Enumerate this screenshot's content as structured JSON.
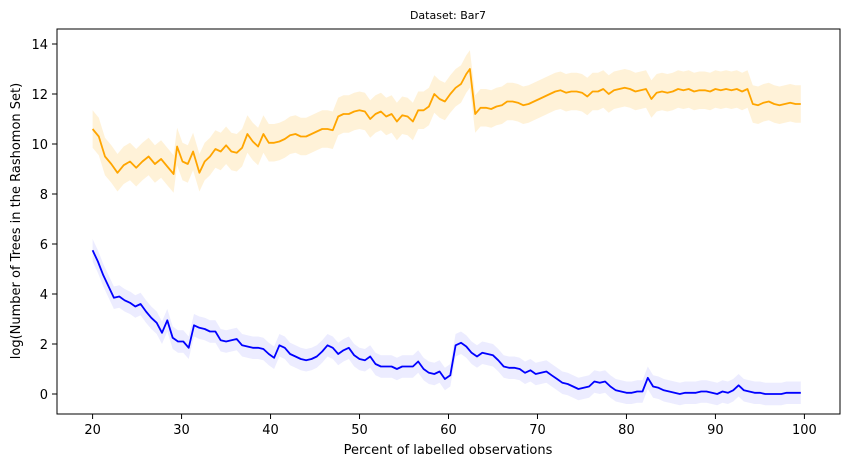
{
  "chart_data": {
    "type": "line",
    "title": "Dataset: Bar7",
    "xlabel": "Percent of labelled observations",
    "ylabel": "log(Number of Trees in the Rashomon Set)",
    "xlim": [
      16,
      104
    ],
    "ylim": [
      -0.8,
      14.6
    ],
    "xticks": [
      20,
      30,
      40,
      50,
      60,
      70,
      80,
      90,
      100
    ],
    "yticks": [
      0,
      2,
      4,
      6,
      8,
      10,
      12,
      14
    ],
    "grid": false,
    "legend": "none",
    "series": [
      {
        "color": "#ffa500",
        "band_color": "#ffe8b8",
        "band_halfwidth": 0.75,
        "points": [
          [
            20,
            10.6
          ],
          [
            20.7,
            10.3
          ],
          [
            21.4,
            9.5
          ],
          [
            22.1,
            9.2
          ],
          [
            22.8,
            8.85
          ],
          [
            23.5,
            9.15
          ],
          [
            24.2,
            9.3
          ],
          [
            24.9,
            9.05
          ],
          [
            25.6,
            9.3
          ],
          [
            26.3,
            9.5
          ],
          [
            27,
            9.2
          ],
          [
            27.7,
            9.4
          ],
          [
            28.4,
            9.1
          ],
          [
            29.1,
            8.8
          ],
          [
            29.5,
            9.9
          ],
          [
            30.1,
            9.3
          ],
          [
            30.7,
            9.2
          ],
          [
            31.3,
            9.7
          ],
          [
            32,
            8.85
          ],
          [
            32.6,
            9.3
          ],
          [
            33.2,
            9.5
          ],
          [
            33.8,
            9.8
          ],
          [
            34.4,
            9.7
          ],
          [
            35,
            9.95
          ],
          [
            35.6,
            9.7
          ],
          [
            36.2,
            9.65
          ],
          [
            36.8,
            9.85
          ],
          [
            37.4,
            10.4
          ],
          [
            38,
            10.1
          ],
          [
            38.6,
            9.9
          ],
          [
            39.2,
            10.4
          ],
          [
            39.8,
            10.05
          ],
          [
            40.4,
            10.05
          ],
          [
            41,
            10.1
          ],
          [
            41.6,
            10.2
          ],
          [
            42.2,
            10.35
          ],
          [
            42.8,
            10.4
          ],
          [
            43.4,
            10.3
          ],
          [
            44,
            10.3
          ],
          [
            44.6,
            10.4
          ],
          [
            45.2,
            10.5
          ],
          [
            45.8,
            10.6
          ],
          [
            46.4,
            10.6
          ],
          [
            47,
            10.55
          ],
          [
            47.6,
            11.1
          ],
          [
            48.2,
            11.2
          ],
          [
            48.8,
            11.2
          ],
          [
            49.4,
            11.3
          ],
          [
            50,
            11.35
          ],
          [
            50.6,
            11.3
          ],
          [
            51.2,
            11.0
          ],
          [
            51.8,
            11.2
          ],
          [
            52.4,
            11.3
          ],
          [
            53,
            11.1
          ],
          [
            53.6,
            11.2
          ],
          [
            54.2,
            10.9
          ],
          [
            54.8,
            11.15
          ],
          [
            55.4,
            11.1
          ],
          [
            56,
            10.9
          ],
          [
            56.6,
            11.35
          ],
          [
            57.2,
            11.35
          ],
          [
            57.8,
            11.5
          ],
          [
            58.4,
            12.0
          ],
          [
            59,
            11.8
          ],
          [
            59.6,
            11.7
          ],
          [
            60.2,
            12.0
          ],
          [
            60.8,
            12.25
          ],
          [
            61.4,
            12.4
          ],
          [
            62,
            12.8
          ],
          [
            62.4,
            13.0
          ],
          [
            63,
            11.2
          ],
          [
            63.6,
            11.45
          ],
          [
            64.2,
            11.45
          ],
          [
            64.8,
            11.4
          ],
          [
            65.4,
            11.5
          ],
          [
            66,
            11.55
          ],
          [
            66.6,
            11.7
          ],
          [
            67.2,
            11.7
          ],
          [
            67.8,
            11.65
          ],
          [
            68.4,
            11.55
          ],
          [
            69,
            11.6
          ],
          [
            69.6,
            11.7
          ],
          [
            70.2,
            11.8
          ],
          [
            70.8,
            11.9
          ],
          [
            71.4,
            12.0
          ],
          [
            72,
            12.1
          ],
          [
            72.6,
            12.15
          ],
          [
            73.2,
            12.05
          ],
          [
            73.8,
            12.1
          ],
          [
            74.4,
            12.1
          ],
          [
            75,
            12.05
          ],
          [
            75.6,
            11.9
          ],
          [
            76.2,
            12.1
          ],
          [
            76.8,
            12.1
          ],
          [
            77.4,
            12.2
          ],
          [
            78,
            12.0
          ],
          [
            78.6,
            12.15
          ],
          [
            79.2,
            12.2
          ],
          [
            79.8,
            12.25
          ],
          [
            80.4,
            12.2
          ],
          [
            81,
            12.1
          ],
          [
            81.6,
            12.15
          ],
          [
            82.2,
            12.2
          ],
          [
            82.8,
            11.8
          ],
          [
            83.4,
            12.05
          ],
          [
            84,
            12.1
          ],
          [
            84.6,
            12.05
          ],
          [
            85.2,
            12.1
          ],
          [
            85.8,
            12.2
          ],
          [
            86.4,
            12.15
          ],
          [
            87,
            12.2
          ],
          [
            87.6,
            12.1
          ],
          [
            88.2,
            12.15
          ],
          [
            88.8,
            12.15
          ],
          [
            89.4,
            12.1
          ],
          [
            90,
            12.2
          ],
          [
            90.6,
            12.15
          ],
          [
            91.2,
            12.2
          ],
          [
            91.8,
            12.15
          ],
          [
            92.4,
            12.2
          ],
          [
            93,
            12.1
          ],
          [
            93.6,
            12.2
          ],
          [
            94.2,
            11.6
          ],
          [
            94.8,
            11.55
          ],
          [
            95.4,
            11.65
          ],
          [
            96,
            11.7
          ],
          [
            96.6,
            11.6
          ],
          [
            97.2,
            11.55
          ],
          [
            97.8,
            11.6
          ],
          [
            98.4,
            11.65
          ],
          [
            99,
            11.6
          ],
          [
            99.6,
            11.6
          ]
        ]
      },
      {
        "color": "#0000ff",
        "band_color": "#dcdcff",
        "band_halfwidth": 0.45,
        "points": [
          [
            20,
            5.75
          ],
          [
            20.6,
            5.3
          ],
          [
            21.2,
            4.75
          ],
          [
            21.8,
            4.3
          ],
          [
            22.4,
            3.85
          ],
          [
            23,
            3.9
          ],
          [
            23.6,
            3.75
          ],
          [
            24.2,
            3.65
          ],
          [
            24.8,
            3.5
          ],
          [
            25.4,
            3.6
          ],
          [
            26,
            3.3
          ],
          [
            26.6,
            3.05
          ],
          [
            27.2,
            2.85
          ],
          [
            27.8,
            2.45
          ],
          [
            28.4,
            2.95
          ],
          [
            29,
            2.25
          ],
          [
            29.6,
            2.1
          ],
          [
            30.2,
            2.1
          ],
          [
            30.8,
            1.85
          ],
          [
            31.4,
            2.75
          ],
          [
            32,
            2.65
          ],
          [
            32.6,
            2.6
          ],
          [
            33.2,
            2.5
          ],
          [
            33.8,
            2.5
          ],
          [
            34.4,
            2.15
          ],
          [
            35,
            2.1
          ],
          [
            35.6,
            2.15
          ],
          [
            36.2,
            2.2
          ],
          [
            36.8,
            1.95
          ],
          [
            37.4,
            1.9
          ],
          [
            38,
            1.85
          ],
          [
            38.6,
            1.85
          ],
          [
            39.2,
            1.8
          ],
          [
            39.8,
            1.6
          ],
          [
            40.4,
            1.45
          ],
          [
            41,
            1.95
          ],
          [
            41.6,
            1.85
          ],
          [
            42.2,
            1.6
          ],
          [
            42.8,
            1.5
          ],
          [
            43.4,
            1.4
          ],
          [
            44,
            1.35
          ],
          [
            44.6,
            1.4
          ],
          [
            45.2,
            1.5
          ],
          [
            45.8,
            1.7
          ],
          [
            46.4,
            1.95
          ],
          [
            47,
            1.85
          ],
          [
            47.6,
            1.6
          ],
          [
            48.2,
            1.75
          ],
          [
            48.8,
            1.85
          ],
          [
            49.4,
            1.55
          ],
          [
            50,
            1.4
          ],
          [
            50.6,
            1.35
          ],
          [
            51.2,
            1.5
          ],
          [
            51.8,
            1.2
          ],
          [
            52.4,
            1.1
          ],
          [
            53,
            1.1
          ],
          [
            53.6,
            1.1
          ],
          [
            54.2,
            1.0
          ],
          [
            54.8,
            1.1
          ],
          [
            55.4,
            1.1
          ],
          [
            56,
            1.1
          ],
          [
            56.6,
            1.3
          ],
          [
            57.2,
            1.0
          ],
          [
            57.8,
            0.85
          ],
          [
            58.4,
            0.8
          ],
          [
            59,
            0.9
          ],
          [
            59.6,
            0.6
          ],
          [
            60.2,
            0.75
          ],
          [
            60.8,
            1.95
          ],
          [
            61.4,
            2.05
          ],
          [
            62,
            1.9
          ],
          [
            62.6,
            1.65
          ],
          [
            63.2,
            1.5
          ],
          [
            63.8,
            1.65
          ],
          [
            64.4,
            1.6
          ],
          [
            65,
            1.55
          ],
          [
            65.6,
            1.35
          ],
          [
            66.2,
            1.1
          ],
          [
            66.8,
            1.05
          ],
          [
            67.4,
            1.05
          ],
          [
            68,
            1.0
          ],
          [
            68.6,
            0.85
          ],
          [
            69.2,
            0.95
          ],
          [
            69.8,
            0.8
          ],
          [
            70.4,
            0.85
          ],
          [
            71,
            0.9
          ],
          [
            71.6,
            0.75
          ],
          [
            72.2,
            0.6
          ],
          [
            72.8,
            0.45
          ],
          [
            73.4,
            0.4
          ],
          [
            74,
            0.3
          ],
          [
            74.6,
            0.2
          ],
          [
            75.2,
            0.25
          ],
          [
            75.8,
            0.3
          ],
          [
            76.4,
            0.5
          ],
          [
            77,
            0.45
          ],
          [
            77.6,
            0.5
          ],
          [
            78.2,
            0.3
          ],
          [
            78.8,
            0.15
          ],
          [
            79.4,
            0.1
          ],
          [
            80,
            0.05
          ],
          [
            80.6,
            0.05
          ],
          [
            81.2,
            0.1
          ],
          [
            81.8,
            0.1
          ],
          [
            82.4,
            0.65
          ],
          [
            83,
            0.3
          ],
          [
            83.6,
            0.25
          ],
          [
            84.2,
            0.15
          ],
          [
            84.8,
            0.1
          ],
          [
            85.4,
            0.05
          ],
          [
            86,
            0.0
          ],
          [
            86.6,
            0.05
          ],
          [
            87.2,
            0.05
          ],
          [
            87.8,
            0.05
          ],
          [
            88.4,
            0.1
          ],
          [
            89,
            0.1
          ],
          [
            89.6,
            0.05
          ],
          [
            90.2,
            0.0
          ],
          [
            90.8,
            0.1
          ],
          [
            91.4,
            0.05
          ],
          [
            92,
            0.15
          ],
          [
            92.6,
            0.35
          ],
          [
            93.2,
            0.15
          ],
          [
            93.8,
            0.1
          ],
          [
            94.4,
            0.05
          ],
          [
            95,
            0.05
          ],
          [
            95.6,
            0.0
          ],
          [
            96.2,
            0.0
          ],
          [
            96.8,
            0.0
          ],
          [
            97.4,
            0.0
          ],
          [
            98,
            0.05
          ],
          [
            98.6,
            0.05
          ],
          [
            99.2,
            0.05
          ],
          [
            99.6,
            0.05
          ]
        ]
      }
    ]
  }
}
